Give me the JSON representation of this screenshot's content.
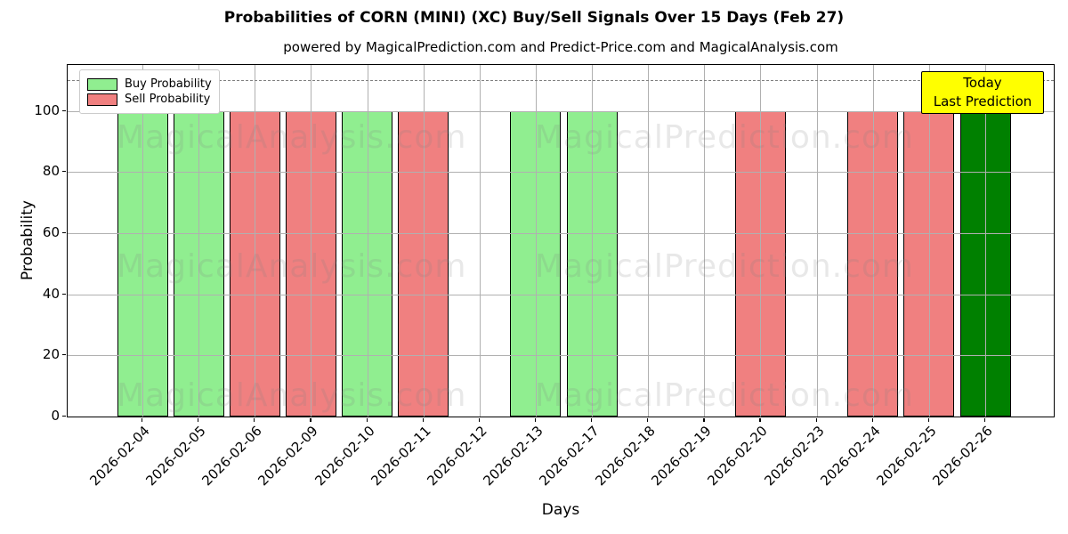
{
  "chart": {
    "legend": {
      "buy": "Buy Probability",
      "sell": "Sell Probability"
    },
    "annotation": {
      "line1": "Today",
      "line2": "Last Prediction"
    },
    "watermarks": [
      "MagicalAnalysis.com",
      "MagicalPrediction.com"
    ],
    "colors": {
      "buy": "#90ee90",
      "sell": "#f08080",
      "today": "#008000",
      "annotation_bg": "#ffff00",
      "grid": "#b0b0b0",
      "threshold": "#7f7f7f"
    }
  },
  "chart_data": {
    "type": "bar",
    "title": "Probabilities of CORN (MINI) (XC) Buy/Sell Signals Over 15 Days (Feb 27)",
    "subtitle": "powered by MagicalPrediction.com and Predict-Price.com and MagicalAnalysis.com",
    "xlabel": "Days",
    "ylabel": "Probability",
    "categories": [
      "2026-02-04",
      "2026-02-05",
      "2026-02-06",
      "2026-02-09",
      "2026-02-10",
      "2026-02-11",
      "2026-02-12",
      "2026-02-13",
      "2026-02-17",
      "2026-02-18",
      "2026-02-19",
      "2026-02-20",
      "2026-02-23",
      "2026-02-24",
      "2026-02-25",
      "2026-02-26"
    ],
    "series": [
      {
        "name": "Buy Probability",
        "color": "#90ee90",
        "values": [
          100,
          100,
          0,
          0,
          100,
          0,
          0,
          100,
          100,
          0,
          0,
          0,
          0,
          0,
          0,
          0
        ]
      },
      {
        "name": "Sell Probability",
        "color": "#f08080",
        "values": [
          0,
          0,
          100,
          100,
          0,
          100,
          0,
          0,
          0,
          0,
          0,
          100,
          0,
          100,
          100,
          0
        ]
      },
      {
        "name": "Today / Last Prediction",
        "color": "#008000",
        "values": [
          0,
          0,
          0,
          0,
          0,
          0,
          0,
          0,
          0,
          0,
          0,
          0,
          0,
          0,
          0,
          100
        ]
      }
    ],
    "yticks": [
      0,
      20,
      40,
      60,
      80,
      100
    ],
    "ylim": [
      0,
      115
    ],
    "threshold_line": 110,
    "grid": true,
    "legend_position": "upper left",
    "annotation_x": "2026-02-26"
  }
}
